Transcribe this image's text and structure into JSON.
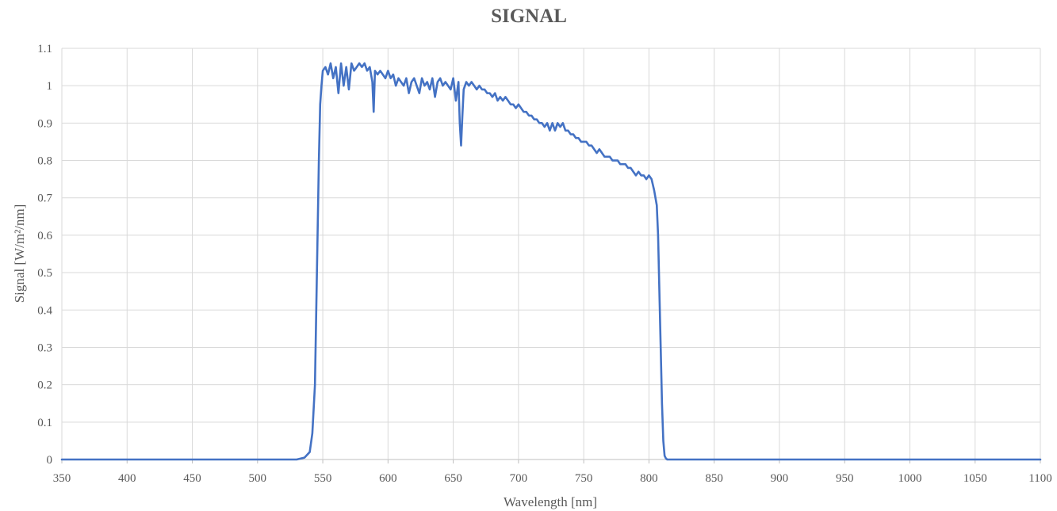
{
  "chart_data": {
    "type": "line",
    "title": "SIGNAL",
    "xlabel": "Wavelength [nm]",
    "ylabel": "Signal [W/m²/nm]",
    "xlim": [
      350,
      1100
    ],
    "ylim": [
      0,
      1.1
    ],
    "x_ticks": [
      350,
      400,
      450,
      500,
      550,
      600,
      650,
      700,
      750,
      800,
      850,
      900,
      950,
      1000,
      1050,
      1100
    ],
    "y_ticks": [
      0,
      0.1,
      0.2,
      0.3,
      0.4,
      0.5,
      0.6,
      0.7,
      0.8,
      0.9,
      1,
      1.1
    ],
    "grid": true,
    "legend": "none",
    "color": "#4472c4",
    "series": [
      {
        "x": [
          350,
          400,
          450,
          500,
          530,
          536,
          540,
          542,
          544,
          545,
          546,
          547,
          548,
          549,
          550,
          552,
          554,
          556,
          558,
          560,
          562,
          564,
          566,
          568,
          570,
          572,
          574,
          576,
          578,
          580,
          582,
          584,
          586,
          588,
          589,
          590,
          592,
          594,
          596,
          598,
          600,
          602,
          604,
          606,
          608,
          610,
          612,
          614,
          616,
          618,
          620,
          622,
          624,
          626,
          628,
          630,
          632,
          634,
          636,
          638,
          640,
          642,
          644,
          646,
          648,
          650,
          652,
          654,
          655,
          656,
          657,
          658,
          660,
          662,
          664,
          666,
          668,
          670,
          672,
          674,
          676,
          678,
          680,
          682,
          684,
          686,
          688,
          690,
          692,
          694,
          696,
          698,
          700,
          702,
          704,
          706,
          708,
          710,
          712,
          714,
          716,
          718,
          720,
          722,
          724,
          726,
          728,
          730,
          732,
          734,
          736,
          738,
          740,
          742,
          744,
          746,
          748,
          750,
          752,
          754,
          756,
          758,
          760,
          762,
          764,
          766,
          768,
          770,
          772,
          774,
          776,
          778,
          780,
          782,
          784,
          786,
          788,
          790,
          792,
          794,
          796,
          798,
          800,
          802,
          804,
          806,
          807,
          808,
          809,
          810,
          811,
          812,
          813,
          814,
          820,
          850,
          900,
          950,
          1000,
          1050,
          1100
        ],
        "y": [
          0,
          0,
          0,
          0,
          0,
          0.005,
          0.02,
          0.07,
          0.2,
          0.4,
          0.6,
          0.8,
          0.95,
          1.0,
          1.04,
          1.05,
          1.03,
          1.06,
          1.02,
          1.05,
          0.98,
          1.06,
          1.0,
          1.05,
          0.99,
          1.06,
          1.04,
          1.05,
          1.06,
          1.05,
          1.06,
          1.04,
          1.05,
          1.01,
          0.93,
          1.04,
          1.03,
          1.04,
          1.03,
          1.02,
          1.04,
          1.02,
          1.03,
          1.0,
          1.02,
          1.01,
          1.0,
          1.02,
          0.98,
          1.01,
          1.02,
          1.0,
          0.98,
          1.02,
          1.0,
          1.01,
          0.99,
          1.02,
          0.97,
          1.01,
          1.02,
          1.0,
          1.01,
          1.0,
          0.99,
          1.02,
          0.96,
          1.01,
          0.9,
          0.84,
          0.92,
          0.99,
          1.01,
          1.0,
          1.01,
          1.0,
          0.99,
          1.0,
          0.99,
          0.99,
          0.98,
          0.98,
          0.97,
          0.98,
          0.96,
          0.97,
          0.96,
          0.97,
          0.96,
          0.95,
          0.95,
          0.94,
          0.95,
          0.94,
          0.93,
          0.93,
          0.92,
          0.92,
          0.91,
          0.91,
          0.9,
          0.9,
          0.89,
          0.9,
          0.88,
          0.9,
          0.88,
          0.9,
          0.89,
          0.9,
          0.88,
          0.88,
          0.87,
          0.87,
          0.86,
          0.86,
          0.85,
          0.85,
          0.85,
          0.84,
          0.84,
          0.83,
          0.82,
          0.83,
          0.82,
          0.81,
          0.81,
          0.81,
          0.8,
          0.8,
          0.8,
          0.79,
          0.79,
          0.79,
          0.78,
          0.78,
          0.77,
          0.76,
          0.77,
          0.76,
          0.76,
          0.75,
          0.76,
          0.75,
          0.72,
          0.68,
          0.6,
          0.45,
          0.3,
          0.15,
          0.05,
          0.01,
          0.003,
          0,
          0,
          0,
          0,
          0,
          0,
          0,
          0
        ]
      }
    ]
  }
}
